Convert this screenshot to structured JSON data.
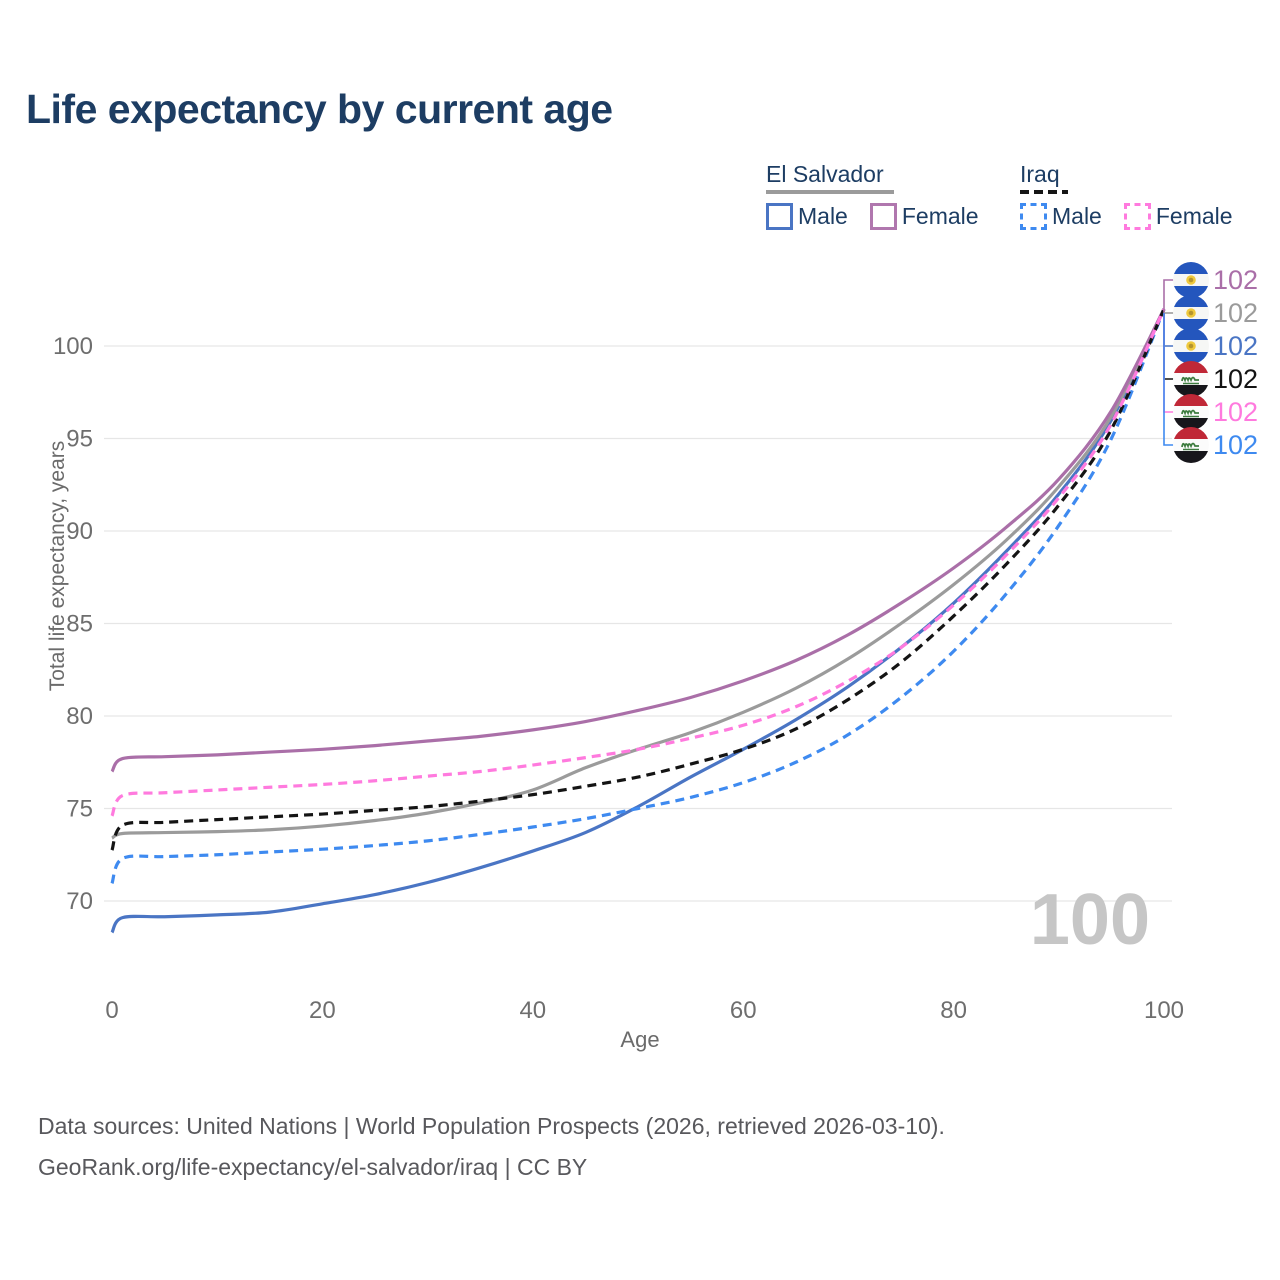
{
  "title": "Life expectancy by current age",
  "legend": {
    "groups": [
      {
        "label": "El Salvador",
        "line_style": "solid",
        "underline_color": "#9b9b9b",
        "items": [
          {
            "label": "Male",
            "color": "#4a75c4",
            "dash": false
          },
          {
            "label": "Female",
            "color": "#aa6fa8",
            "dash": false
          }
        ]
      },
      {
        "label": "Iraq",
        "line_style": "dashed",
        "underline_color": "#151515",
        "items": [
          {
            "label": "Male",
            "color": "#3e8af0",
            "dash": true
          },
          {
            "label": "Female",
            "color": "#ff7ade",
            "dash": true
          }
        ]
      }
    ]
  },
  "chart_data": {
    "type": "line",
    "title": "Life expectancy by current age",
    "xlabel": "Age",
    "ylabel": "Total life expectancy, years",
    "xlim": [
      0,
      100
    ],
    "ylim": [
      67,
      103
    ],
    "xticks": [
      0,
      20,
      40,
      60,
      80,
      100
    ],
    "yticks": [
      70,
      75,
      80,
      85,
      90,
      95,
      100
    ],
    "grid": "horizontal",
    "legend_position": "top-right",
    "x": [
      0,
      1,
      5,
      10,
      15,
      20,
      25,
      30,
      35,
      40,
      45,
      50,
      55,
      60,
      65,
      70,
      75,
      80,
      85,
      90,
      95,
      100
    ],
    "series": [
      {
        "name": "El Salvador Male",
        "country": "El Salvador",
        "sex": "Male",
        "color": "#4a75c4",
        "dash": false,
        "values": [
          68.3,
          69.1,
          69.15,
          69.25,
          69.4,
          69.85,
          70.35,
          71.0,
          71.8,
          72.7,
          73.7,
          75.1,
          76.7,
          78.2,
          79.8,
          81.6,
          83.7,
          86.1,
          88.9,
          92.0,
          96.0,
          102
        ]
      },
      {
        "name": "El Salvador Both sexes",
        "country": "El Salvador",
        "sex": "Both",
        "color": "#9b9b9b",
        "dash": false,
        "values": [
          73.4,
          73.65,
          73.7,
          73.75,
          73.85,
          74.05,
          74.35,
          74.75,
          75.3,
          76.0,
          77.2,
          78.2,
          79.1,
          80.2,
          81.5,
          83.1,
          85.0,
          87.1,
          89.5,
          92.4,
          96.2,
          102
        ]
      },
      {
        "name": "El Salvador Female",
        "country": "El Salvador",
        "sex": "Female",
        "color": "#aa6fa8",
        "dash": false,
        "values": [
          77.0,
          77.7,
          77.8,
          77.9,
          78.05,
          78.2,
          78.4,
          78.65,
          78.9,
          79.25,
          79.7,
          80.3,
          81.0,
          81.9,
          83.0,
          84.4,
          86.1,
          88.0,
          90.2,
          92.8,
          96.5,
          102
        ]
      },
      {
        "name": "Iraq Male",
        "country": "Iraq",
        "sex": "Male",
        "color": "#3e8af0",
        "dash": true,
        "values": [
          70.95,
          72.3,
          72.4,
          72.5,
          72.65,
          72.8,
          73.0,
          73.25,
          73.6,
          74.0,
          74.45,
          75.0,
          75.6,
          76.4,
          77.5,
          79.0,
          81.0,
          83.5,
          86.6,
          90.3,
          95.0,
          102
        ]
      },
      {
        "name": "Iraq Both sexes",
        "country": "Iraq",
        "sex": "Both",
        "color": "#141414",
        "dash": true,
        "values": [
          72.75,
          74.1,
          74.25,
          74.4,
          74.55,
          74.7,
          74.9,
          75.1,
          75.4,
          75.75,
          76.2,
          76.7,
          77.4,
          78.2,
          79.3,
          80.9,
          82.9,
          85.4,
          88.2,
          91.4,
          95.5,
          102
        ]
      },
      {
        "name": "Iraq Female",
        "country": "Iraq",
        "sex": "Female",
        "color": "#ff7ade",
        "dash": true,
        "values": [
          74.6,
          75.7,
          75.85,
          76.0,
          76.15,
          76.3,
          76.5,
          76.75,
          77.0,
          77.35,
          77.75,
          78.2,
          78.8,
          79.5,
          80.5,
          81.9,
          83.7,
          86.0,
          88.7,
          91.8,
          95.8,
          102
        ]
      }
    ]
  },
  "end_labels": [
    {
      "flag": "el-salvador",
      "series": "El Salvador Female",
      "value": "102",
      "color": "#aa6fa8"
    },
    {
      "flag": "el-salvador",
      "series": "El Salvador Both sexes",
      "value": "102",
      "color": "#9b9b9b"
    },
    {
      "flag": "el-salvador",
      "series": "El Salvador Male",
      "value": "102",
      "color": "#4a75c4"
    },
    {
      "flag": "iraq",
      "series": "Iraq Both sexes",
      "value": "102",
      "color": "#141414"
    },
    {
      "flag": "iraq",
      "series": "Iraq Female",
      "value": "102",
      "color": "#ff7ade"
    },
    {
      "flag": "iraq",
      "series": "Iraq Male",
      "value": "102",
      "color": "#3e8af0"
    }
  ],
  "watermark": "100",
  "footer": {
    "line1": "Data sources: United Nations | World Population Prospects (2026, retrieved 2026-03-10).",
    "line2": "GeoRank.org/life-expectancy/el-salvador/iraq | CC BY"
  },
  "colors": {
    "title": "#1d3d63",
    "legend_text": "#1d3d63",
    "axis_text": "#6e6e6e",
    "grid": "#e6e6e6",
    "watermark": "#c6c6c6",
    "footer_text": "#58585c"
  }
}
